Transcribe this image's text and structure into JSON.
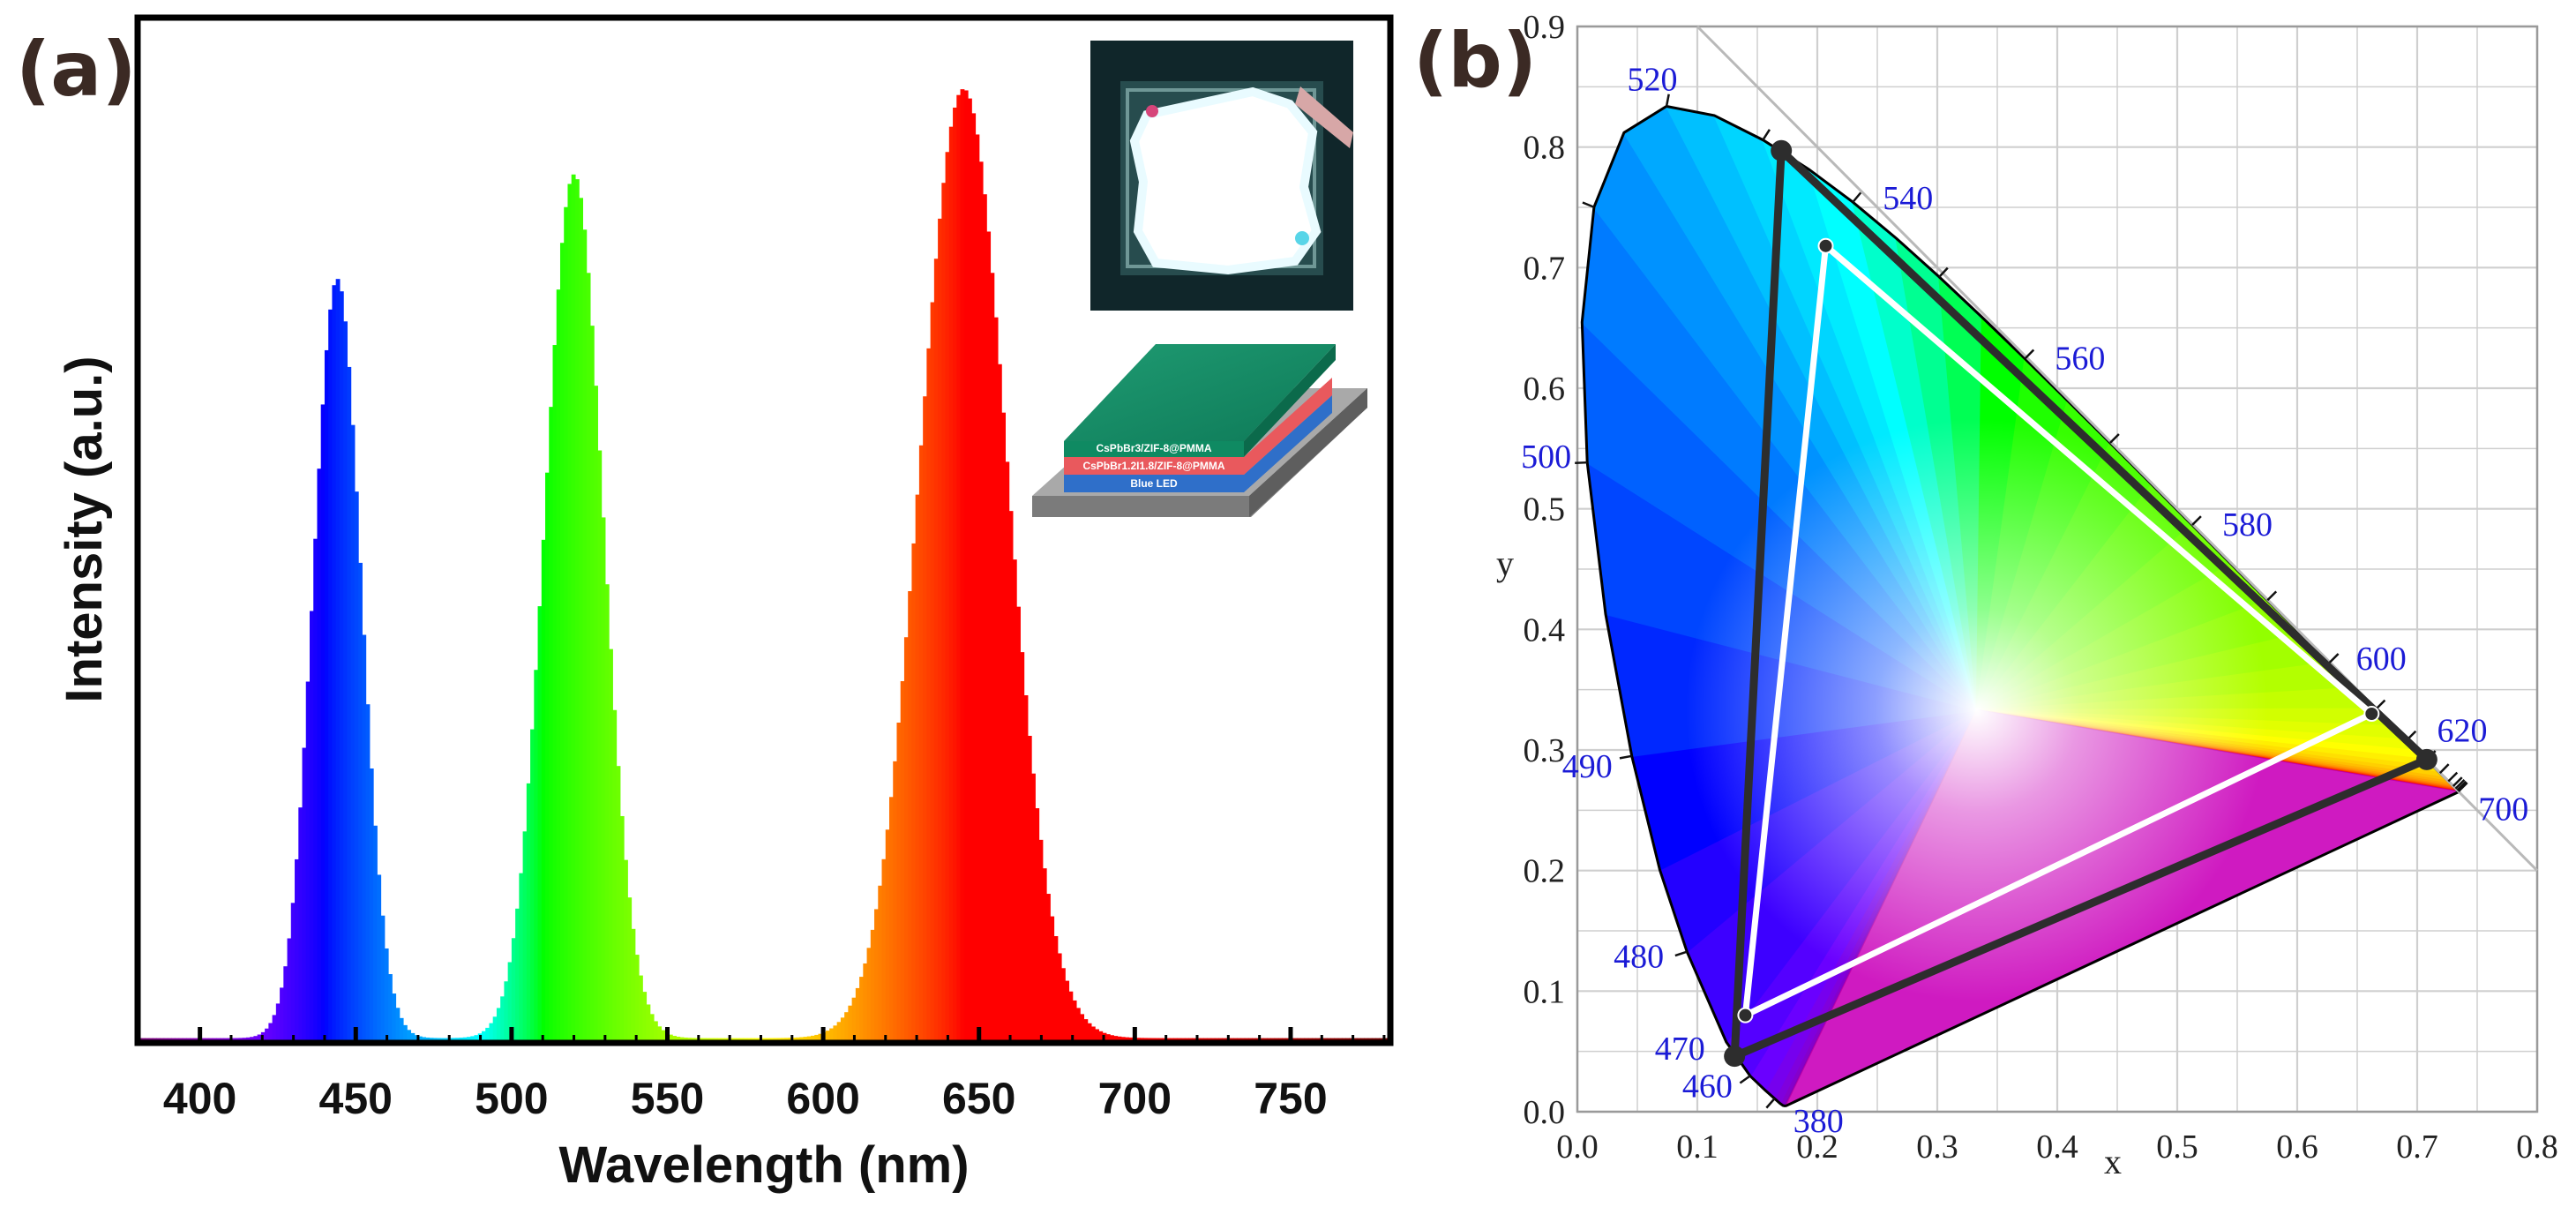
{
  "panel_a": {
    "label": "(a)",
    "inset_layers": [
      "CsPbBr3/ZIF-8@PMMA",
      "CsPbBr1.2I1.8/ZIF-8@PMMA",
      "Blue LED"
    ],
    "chart_data": {
      "type": "area",
      "title": "",
      "xlabel": "Wavelength (nm)",
      "ylabel": "Intensity (a.u.)",
      "xlim": [
        380,
        782
      ],
      "ylim": [
        0,
        1.08
      ],
      "xticks": [
        400,
        450,
        500,
        550,
        600,
        650,
        700,
        750
      ],
      "y_tick_labels": false,
      "peaks": [
        {
          "name": "blue",
          "center_nm": 444,
          "relative_intensity": 0.8,
          "fwhm_nm": 18
        },
        {
          "name": "green",
          "center_nm": 520,
          "relative_intensity": 0.91,
          "fwhm_nm": 22
        },
        {
          "name": "red",
          "center_nm": 645,
          "relative_intensity": 1.0,
          "fwhm_nm": 33
        }
      ]
    }
  },
  "panel_b": {
    "label": "(b)",
    "chart_data": {
      "type": "scatter",
      "title": "",
      "xlabel": "x",
      "ylabel": "y",
      "xlim": [
        0,
        0.8
      ],
      "ylim": [
        0,
        0.9
      ],
      "grid": true,
      "xticks": [
        0.0,
        0.1,
        0.2,
        0.3,
        0.4,
        0.5,
        0.6,
        0.7,
        0.8
      ],
      "yticks": [
        0.0,
        0.1,
        0.2,
        0.3,
        0.4,
        0.5,
        0.6,
        0.7,
        0.8,
        0.9
      ],
      "x_tick_labels": [
        "0.0",
        "0.1",
        "0.2",
        "0.3",
        "0.4",
        "0.5",
        "0.6",
        "0.7",
        "0.8"
      ],
      "y_tick_labels": [
        "0.0",
        "0.1",
        "0.2",
        "0.3",
        "0.4",
        "0.5",
        "0.6",
        "0.7",
        "0.8",
        "0.9"
      ],
      "wavelength_labels": [
        {
          "text": "380",
          "x": 0.1741,
          "y": 0.005
        },
        {
          "text": "460",
          "x": 0.144,
          "y": 0.0297
        },
        {
          "text": "470",
          "x": 0.1241,
          "y": 0.0578
        },
        {
          "text": "480",
          "x": 0.0913,
          "y": 0.1327
        },
        {
          "text": "490",
          "x": 0.0454,
          "y": 0.295
        },
        {
          "text": "500",
          "x": 0.0082,
          "y": 0.5384
        },
        {
          "text": "520",
          "x": 0.0743,
          "y": 0.8338
        },
        {
          "text": "540",
          "x": 0.2296,
          "y": 0.7543
        },
        {
          "text": "560",
          "x": 0.3731,
          "y": 0.6245
        },
        {
          "text": "580",
          "x": 0.5125,
          "y": 0.4866
        },
        {
          "text": "600",
          "x": 0.627,
          "y": 0.3725
        },
        {
          "text": "620",
          "x": 0.6915,
          "y": 0.3083
        },
        {
          "text": "700",
          "x": 0.7347,
          "y": 0.2653
        }
      ],
      "series": [
        {
          "name": "spectral locus",
          "x": [
            0.1741,
            0.1738,
            0.1733,
            0.1726,
            0.1714,
            0.1689,
            0.1644,
            0.1566,
            0.144,
            0.1241,
            0.0913,
            0.0687,
            0.0454,
            0.0235,
            0.0082,
            0.0039,
            0.0139,
            0.0389,
            0.0743,
            0.1142,
            0.1547,
            0.1929,
            0.2296,
            0.2658,
            0.3016,
            0.3373,
            0.3731,
            0.4087,
            0.4441,
            0.4788,
            0.5125,
            0.5448,
            0.5752,
            0.6029,
            0.627,
            0.6482,
            0.6658,
            0.6801,
            0.6915,
            0.7006,
            0.7079,
            0.714,
            0.719,
            0.723,
            0.726,
            0.7283,
            0.73,
            0.7311,
            0.732,
            0.7327,
            0.7334,
            0.734,
            0.7344,
            0.7346,
            0.7347
          ],
          "y": [
            0.005,
            0.0049,
            0.0048,
            0.0048,
            0.0051,
            0.0069,
            0.0109,
            0.0177,
            0.0297,
            0.0578,
            0.1327,
            0.2007,
            0.295,
            0.4127,
            0.5384,
            0.6548,
            0.7502,
            0.812,
            0.8338,
            0.8262,
            0.8059,
            0.7816,
            0.7543,
            0.7243,
            0.6923,
            0.6589,
            0.6245,
            0.5896,
            0.5547,
            0.5202,
            0.4866,
            0.4544,
            0.4242,
            0.3965,
            0.3725,
            0.3514,
            0.334,
            0.3197,
            0.3083,
            0.2993,
            0.292,
            0.2859,
            0.2809,
            0.277,
            0.274,
            0.2717,
            0.27,
            0.2689,
            0.268,
            0.2673,
            0.2666,
            0.266,
            0.2656,
            0.2654,
            0.2653
          ]
        },
        {
          "name": "standard gamut (dark triangle)",
          "closed": true,
          "x": [
            0.708,
            0.17,
            0.131
          ],
          "y": [
            0.292,
            0.797,
            0.046
          ]
        },
        {
          "name": "this work (white triangle)",
          "closed": true,
          "x": [
            0.207,
            0.662,
            0.14
          ],
          "y": [
            0.718,
            0.33,
            0.08
          ]
        },
        {
          "name": "boundary line",
          "x": [
            0.1,
            0.8
          ],
          "y": [
            0.9,
            0.2
          ]
        }
      ]
    }
  }
}
